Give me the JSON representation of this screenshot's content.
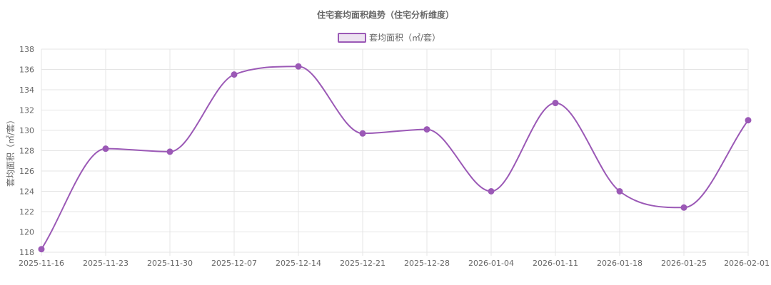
{
  "chart_data": {
    "type": "line",
    "title": "住宅套均面积趋势（住宅分析维度）",
    "xlabel": "",
    "ylabel": "套均面积（㎡/套）",
    "legend_position": "top-center",
    "grid": true,
    "ylim": [
      118,
      138
    ],
    "y_ticks": [
      118,
      120,
      122,
      124,
      126,
      128,
      130,
      132,
      134,
      136,
      138
    ],
    "categories": [
      "2025-11-16",
      "2025-11-23",
      "2025-11-30",
      "2025-12-07",
      "2025-12-14",
      "2025-12-21",
      "2025-12-28",
      "2026-01-04",
      "2026-01-11",
      "2026-01-18",
      "2026-01-25",
      "2026-02-01"
    ],
    "series": [
      {
        "name": "套均面积（㎡/套）",
        "values": [
          118.3,
          128.2,
          127.9,
          135.5,
          136.3,
          129.7,
          130.1,
          124.0,
          132.7,
          124.0,
          122.4,
          131.0
        ],
        "color": "#9b59b6",
        "fill_color": "#ede3f1"
      }
    ]
  }
}
